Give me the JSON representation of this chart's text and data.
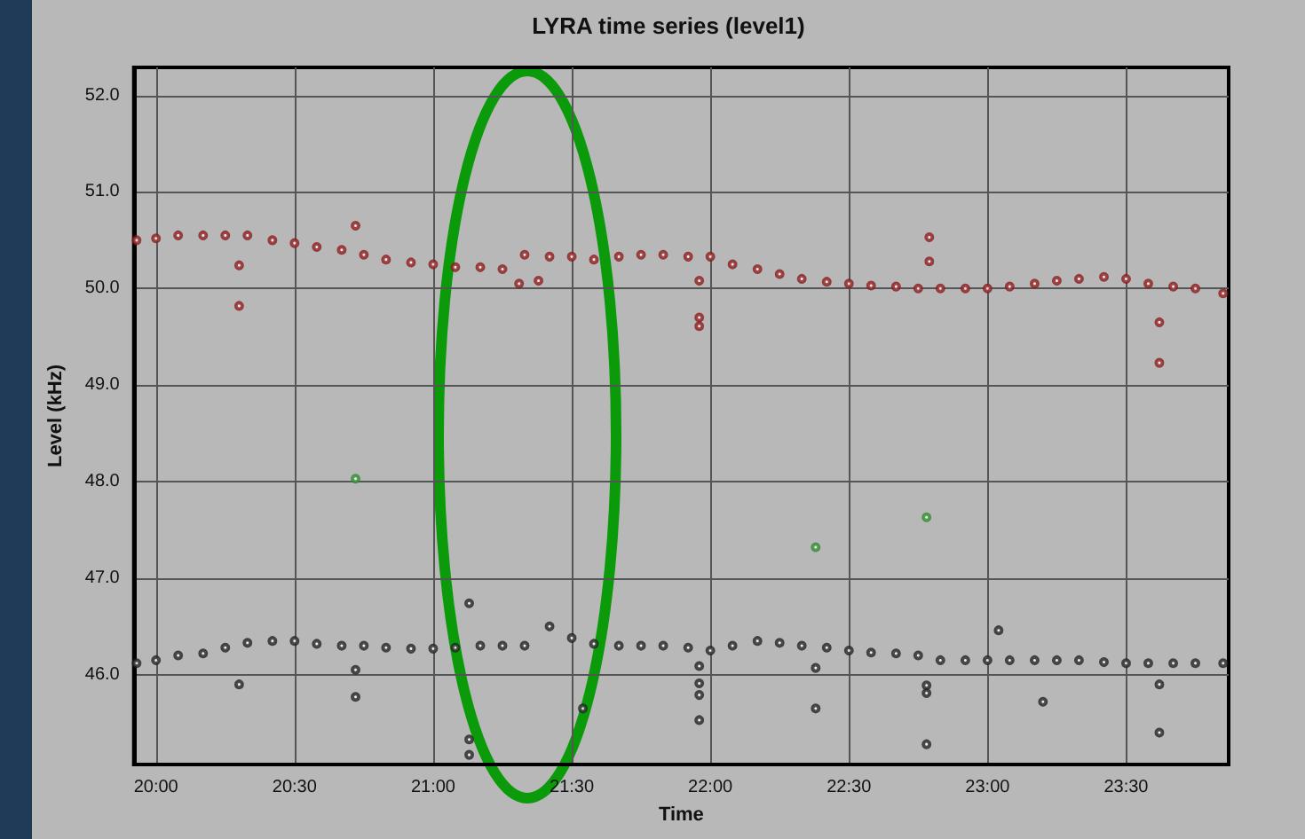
{
  "chart_data": {
    "type": "scatter",
    "title": "LYRA time series (level1)",
    "xlabel": "Time",
    "ylabel": "Level (kHz)",
    "xlim": [
      19.92,
      23.87
    ],
    "ylim": [
      45.07,
      52.29
    ],
    "xticks": [
      {
        "value": 20,
        "label": "20:00"
      },
      {
        "value": 20.5,
        "label": "20:30"
      },
      {
        "value": 21,
        "label": "21:00"
      },
      {
        "value": 21.5,
        "label": "21:30"
      },
      {
        "value": 22,
        "label": "22:00"
      },
      {
        "value": 22.5,
        "label": "22:30"
      },
      {
        "value": 23,
        "label": "23:00"
      },
      {
        "value": 23.5,
        "label": "23:30"
      }
    ],
    "yticks": [
      {
        "value": 46,
        "label": "46.0"
      },
      {
        "value": 47,
        "label": "47.0"
      },
      {
        "value": 48,
        "label": "48.0"
      },
      {
        "value": 49,
        "label": "49.0"
      },
      {
        "value": 50,
        "label": "50.0"
      },
      {
        "value": 51,
        "label": "51.0"
      },
      {
        "value": 52,
        "label": "52.0"
      }
    ],
    "grid": true,
    "marker": "circle",
    "series": [
      {
        "color": "#8b1a1a",
        "x": [
          19.93,
          20,
          20.08,
          20.17,
          20.25,
          20.33,
          20.42,
          20.5,
          20.58,
          20.67,
          20.75,
          20.83,
          20.92,
          21,
          21.08,
          21.17,
          21.25,
          21.33,
          21.42,
          21.5,
          21.58,
          21.67,
          21.75,
          21.83,
          21.92,
          22,
          22.08,
          22.17,
          22.25,
          22.33,
          22.42,
          22.5,
          22.58,
          22.67,
          22.75,
          22.83,
          22.92,
          23,
          23.08,
          23.17,
          23.25,
          23.33,
          23.42,
          23.5,
          23.58,
          23.67,
          23.75,
          23.85,
          20.3,
          20.3,
          20.72,
          21.31,
          21.38,
          21.96,
          21.96,
          21.96,
          22.79,
          22.79,
          23.62,
          23.62
        ],
        "values": [
          50.5,
          50.52,
          50.55,
          50.55,
          50.55,
          50.55,
          50.5,
          50.47,
          50.43,
          50.4,
          50.35,
          50.3,
          50.27,
          50.25,
          50.22,
          50.22,
          50.2,
          50.35,
          50.33,
          50.33,
          50.3,
          50.33,
          50.35,
          50.35,
          50.33,
          50.33,
          50.25,
          50.2,
          50.15,
          50.1,
          50.07,
          50.05,
          50.03,
          50.02,
          50,
          50,
          50,
          50,
          50.02,
          50.05,
          50.08,
          50.1,
          50.12,
          50.1,
          50.05,
          50.02,
          50,
          49.95,
          50.24,
          49.82,
          50.65,
          50.05,
          50.08,
          50.08,
          49.7,
          49.61,
          50.53,
          50.28,
          49.65,
          49.23
        ]
      },
      {
        "color": "#222222",
        "x": [
          19.93,
          20,
          20.08,
          20.17,
          20.25,
          20.33,
          20.42,
          20.5,
          20.58,
          20.67,
          20.75,
          20.83,
          20.92,
          21,
          21.08,
          21.17,
          21.25,
          21.33,
          21.42,
          21.5,
          21.58,
          21.67,
          21.75,
          21.83,
          21.92,
          22,
          22.08,
          22.17,
          22.25,
          22.33,
          22.42,
          22.5,
          22.58,
          22.67,
          22.75,
          22.83,
          22.92,
          23,
          23.08,
          23.17,
          23.25,
          23.33,
          23.42,
          23.5,
          23.58,
          23.67,
          23.75,
          23.85,
          20.3,
          20.72,
          20.72,
          21.13,
          21.13,
          21.13,
          21.54,
          21.96,
          21.96,
          21.96,
          21.96,
          22.38,
          22.38,
          22.78,
          22.78,
          22.78,
          23.04,
          23.2,
          23.62,
          23.62
        ],
        "values": [
          46.12,
          46.15,
          46.2,
          46.22,
          46.28,
          46.33,
          46.35,
          46.35,
          46.32,
          46.3,
          46.3,
          46.28,
          46.27,
          46.27,
          46.28,
          46.3,
          46.3,
          46.3,
          46.5,
          46.38,
          46.32,
          46.3,
          46.3,
          46.3,
          46.28,
          46.25,
          46.3,
          46.35,
          46.33,
          46.3,
          46.28,
          46.25,
          46.23,
          46.22,
          46.2,
          46.15,
          46.15,
          46.15,
          46.15,
          46.15,
          46.15,
          46.15,
          46.13,
          46.12,
          46.12,
          46.12,
          46.12,
          46.12,
          45.9,
          46.05,
          45.77,
          46.74,
          45.33,
          45.17,
          45.65,
          46.09,
          45.91,
          45.79,
          45.53,
          45.65,
          46.07,
          45.89,
          45.81,
          45.28,
          46.46,
          45.72,
          45.4,
          45.9
        ]
      },
      {
        "color": "#2e8b2e",
        "x": [
          20.72,
          22.38,
          22.78
        ],
        "values": [
          48.03,
          47.32,
          47.63
        ]
      }
    ]
  }
}
